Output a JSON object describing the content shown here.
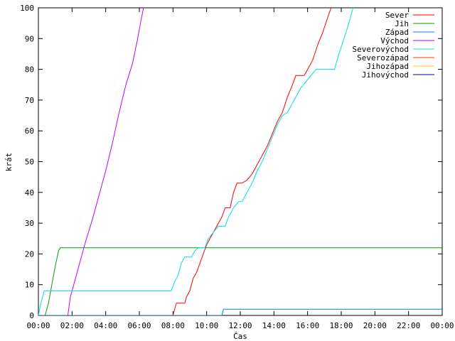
{
  "chart_data": {
    "type": "line",
    "xlabel": "Čas",
    "ylabel": "krát",
    "xlim": [
      0,
      24
    ],
    "ylim": [
      0,
      100
    ],
    "x_ticks": [
      {
        "value": 0,
        "label": "00:00"
      },
      {
        "value": 2,
        "label": "02:00"
      },
      {
        "value": 4,
        "label": "04:00"
      },
      {
        "value": 6,
        "label": "06:00"
      },
      {
        "value": 8,
        "label": "08:00"
      },
      {
        "value": 10,
        "label": "10:00"
      },
      {
        "value": 12,
        "label": "12:00"
      },
      {
        "value": 14,
        "label": "14:00"
      },
      {
        "value": 16,
        "label": "16:00"
      },
      {
        "value": 18,
        "label": "18:00"
      },
      {
        "value": 20,
        "label": "20:00"
      },
      {
        "value": 22,
        "label": "22:00"
      },
      {
        "value": 24,
        "label": "00:00"
      }
    ],
    "y_ticks": [
      0,
      10,
      20,
      30,
      40,
      50,
      60,
      70,
      80,
      90,
      100
    ],
    "grid": false,
    "legend_position": "top-right",
    "series": [
      {
        "name": "Sever",
        "color": "#ff0000",
        "points": [
          [
            8.0,
            0
          ],
          [
            8.1,
            2
          ],
          [
            8.2,
            4
          ],
          [
            8.7,
            4
          ],
          [
            8.8,
            6
          ],
          [
            9.0,
            8
          ],
          [
            9.2,
            12
          ],
          [
            9.4,
            14
          ],
          [
            9.6,
            17
          ],
          [
            9.8,
            20
          ],
          [
            10.0,
            23
          ],
          [
            10.3,
            26
          ],
          [
            10.6,
            29
          ],
          [
            10.9,
            32
          ],
          [
            11.1,
            35
          ],
          [
            11.4,
            35
          ],
          [
            11.6,
            40
          ],
          [
            11.8,
            43
          ],
          [
            12.1,
            43
          ],
          [
            12.4,
            44
          ],
          [
            12.7,
            46
          ],
          [
            13.0,
            49
          ],
          [
            13.3,
            52
          ],
          [
            13.6,
            55
          ],
          [
            13.9,
            59
          ],
          [
            14.2,
            63
          ],
          [
            14.5,
            66
          ],
          [
            14.8,
            71
          ],
          [
            15.1,
            75
          ],
          [
            15.3,
            78
          ],
          [
            15.8,
            78
          ],
          [
            16.0,
            80
          ],
          [
            16.3,
            83
          ],
          [
            16.6,
            88
          ],
          [
            16.9,
            92
          ],
          [
            17.2,
            97
          ],
          [
            17.4,
            100
          ]
        ]
      },
      {
        "name": "Jih",
        "color": "#00a000",
        "points": [
          [
            0.0,
            0
          ],
          [
            0.4,
            0
          ],
          [
            0.6,
            4
          ],
          [
            0.8,
            10
          ],
          [
            1.0,
            16
          ],
          [
            1.2,
            21
          ],
          [
            1.3,
            22
          ],
          [
            24.0,
            22
          ]
        ]
      },
      {
        "name": "Západ",
        "color": "#0080ff",
        "points": [
          [
            0.0,
            0
          ],
          [
            10.9,
            0
          ],
          [
            11.0,
            2
          ],
          [
            24.0,
            2
          ]
        ]
      },
      {
        "name": "Východ",
        "color": "#c000ff",
        "points": [
          [
            1.75,
            0
          ],
          [
            1.9,
            6
          ],
          [
            2.2,
            12
          ],
          [
            2.5,
            18
          ],
          [
            2.8,
            24
          ],
          [
            3.2,
            31
          ],
          [
            3.6,
            39
          ],
          [
            4.0,
            47
          ],
          [
            4.4,
            56
          ],
          [
            4.8,
            66
          ],
          [
            5.2,
            75
          ],
          [
            5.6,
            82
          ],
          [
            5.9,
            90
          ],
          [
            6.1,
            96
          ],
          [
            6.25,
            100
          ]
        ]
      },
      {
        "name": "Severovýchod",
        "color": "#00e0e0",
        "points": [
          [
            0.0,
            0
          ],
          [
            0.15,
            4
          ],
          [
            0.35,
            8
          ],
          [
            7.9,
            8
          ],
          [
            8.1,
            11
          ],
          [
            8.3,
            13
          ],
          [
            8.5,
            17
          ],
          [
            8.7,
            19
          ],
          [
            9.1,
            19
          ],
          [
            9.3,
            21
          ],
          [
            9.5,
            22
          ],
          [
            9.9,
            22
          ],
          [
            10.1,
            25
          ],
          [
            10.4,
            27
          ],
          [
            10.7,
            29
          ],
          [
            11.1,
            29
          ],
          [
            11.3,
            32
          ],
          [
            11.6,
            35
          ],
          [
            11.9,
            37
          ],
          [
            12.1,
            37
          ],
          [
            12.4,
            40
          ],
          [
            12.7,
            43
          ],
          [
            13.0,
            47
          ],
          [
            13.3,
            50
          ],
          [
            13.6,
            54
          ],
          [
            13.9,
            58
          ],
          [
            14.2,
            62
          ],
          [
            14.5,
            65
          ],
          [
            14.8,
            66
          ],
          [
            15.1,
            69
          ],
          [
            15.4,
            72
          ],
          [
            15.6,
            74
          ],
          [
            15.9,
            76
          ],
          [
            16.2,
            78
          ],
          [
            16.5,
            80
          ],
          [
            17.6,
            80
          ],
          [
            17.8,
            84
          ],
          [
            18.1,
            89
          ],
          [
            18.4,
            94
          ],
          [
            18.6,
            98
          ],
          [
            18.7,
            100
          ]
        ]
      },
      {
        "name": "Severozápad",
        "color": "#ff4000",
        "points": []
      },
      {
        "name": "Jihozápad",
        "color": "#ffd000",
        "points": []
      },
      {
        "name": "Jihovýchod",
        "color": "#0000a0",
        "points": []
      }
    ]
  }
}
